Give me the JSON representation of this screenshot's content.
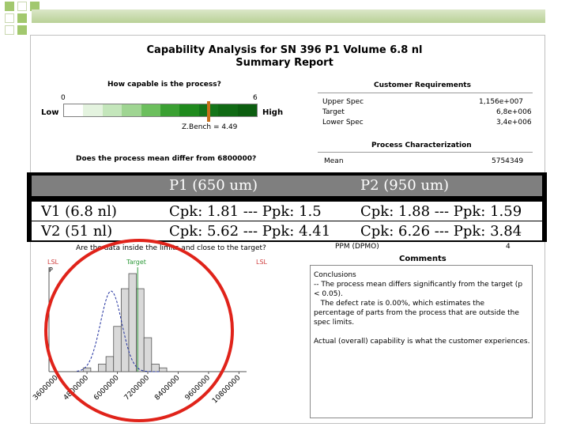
{
  "report": {
    "title_line1": "Capability Analysis for SN 396 P1 Volume 6.8 nl",
    "title_line2": "Summary Report"
  },
  "capability": {
    "question": "How capable is the process?",
    "scale_min": "0",
    "scale_max": "6",
    "low_label": "Low",
    "high_label": "High",
    "zbench_label": "Z.Bench = 4.49",
    "zbench_value": 4.49,
    "gradient_colors": [
      "#ffffff",
      "#e4f3df",
      "#c4e6bb",
      "#9fd592",
      "#6cbf5d",
      "#3aa032",
      "#1f8a1d",
      "#14751a",
      "#106a14",
      "#0c5e10"
    ],
    "marker_color": "#c8701a"
  },
  "mean_question": "Does the process mean differ from 6800000?",
  "customer_requirements": {
    "heading": "Customer Requirements",
    "rows": [
      {
        "label": "Upper Spec",
        "value": "1,156e+007"
      },
      {
        "label": "Target",
        "value": "6,8e+006"
      },
      {
        "label": "Lower Spec",
        "value": "3,4e+006"
      }
    ]
  },
  "process_characterization": {
    "heading": "Process Characterization",
    "rows": [
      {
        "label": "Mean",
        "value": "5754349"
      }
    ]
  },
  "overlay_table": {
    "headers": [
      "",
      "P1 (650 um)",
      "P2 (950 um)"
    ],
    "rows": [
      {
        "label": "V1 (6.8 nl)",
        "p1": "Cpk: 1.81 --- Ppk: 1.5",
        "p2": "Cpk: 1.88 --- Ppk: 1.59"
      },
      {
        "label": "V2 (51 nl)",
        "p1": "Cpk: 5.62 --- Ppk: 4.41",
        "p2": "Cpk: 6.26 --- Ppk: 3.84"
      }
    ]
  },
  "histogram": {
    "question": "Are the data inside the limits and close to the target?",
    "lsl_left": "LSL",
    "target_label": "Target",
    "lsl_right": "LSL",
    "target_color": "#2e9a3a",
    "limit_color": "#d04040",
    "partial_left": "P",
    "ppm_text": "PPM (DPMO)",
    "ppm_value": "4",
    "x_ticks": [
      "3600000",
      "4800000",
      "6000000",
      "7200000",
      "8400000",
      "9600000",
      "10800000"
    ]
  },
  "chart_data": {
    "type": "bar",
    "title": "",
    "xlabel": "",
    "ylabel": "",
    "bin_width": 300000,
    "bins_start": [
      4650000,
      4950000,
      5250000,
      5550000,
      5850000,
      6150000,
      6450000,
      6750000,
      7050000,
      7350000,
      7650000
    ],
    "values": [
      1,
      0,
      2,
      4,
      12,
      22,
      26,
      22,
      9,
      2,
      1
    ],
    "xlim": [
      3300000,
      11100000
    ],
    "curve_mean": 5754349
  },
  "comments": {
    "heading": "Comments",
    "lines": [
      "Conclusions",
      "-- The process mean differs significantly from the target (p",
      "< 0.05).",
      "   The defect rate is 0.00%, which estimates the",
      "percentage of parts from the process that are outside the",
      "spec limits.",
      "",
      "Actual (overall) capability is what the customer experiences."
    ]
  },
  "annotation": {
    "circle_color": "#e0231a"
  }
}
